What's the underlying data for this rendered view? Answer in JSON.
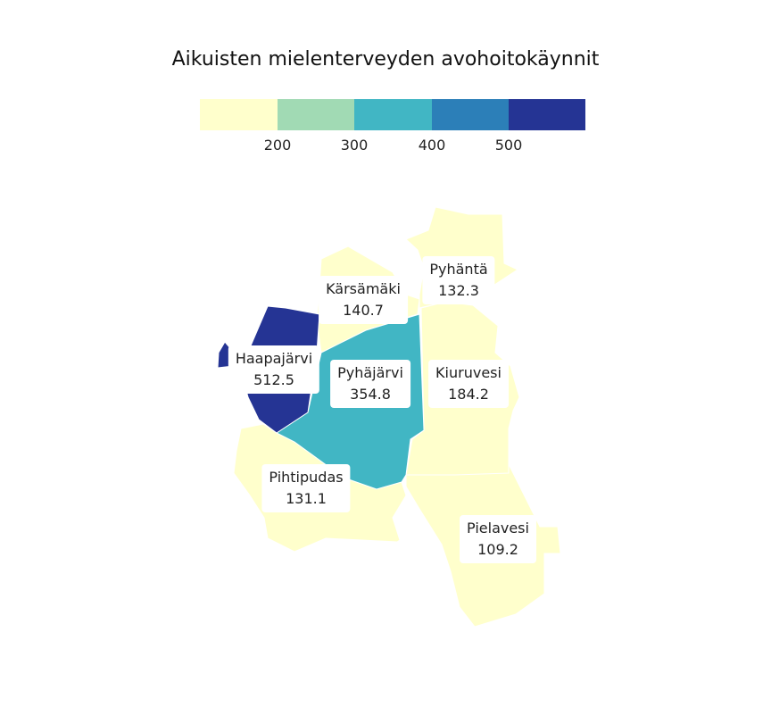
{
  "title": "Aikuisten mielenterveyden avohoitokäynnit",
  "legend": {
    "colors": [
      "#ffffcc",
      "#a1dab4",
      "#41b6c4",
      "#2c7fb8",
      "#253494"
    ],
    "ticks": [
      "200",
      "300",
      "400",
      "500"
    ]
  },
  "regions": [
    {
      "name": "Kärsämäki",
      "value": "140.7",
      "color": "#ffffcc"
    },
    {
      "name": "Pyhäntä",
      "value": "132.3",
      "color": "#ffffcc"
    },
    {
      "name": "Haapajärvi",
      "value": "512.5",
      "color": "#253494"
    },
    {
      "name": "Pyhäjärvi",
      "value": "354.8",
      "color": "#41b6c4"
    },
    {
      "name": "Kiuruvesi",
      "value": "184.2",
      "color": "#ffffcc"
    },
    {
      "name": "Pihtipudas",
      "value": "131.1",
      "color": "#ffffcc"
    },
    {
      "name": "Pielavesi",
      "value": "109.2",
      "color": "#ffffcc"
    }
  ]
}
